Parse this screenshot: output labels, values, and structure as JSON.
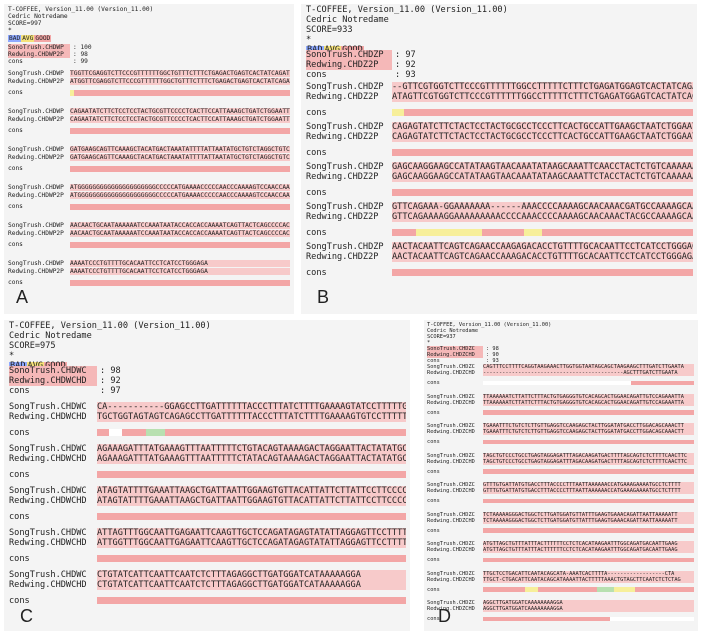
{
  "panels": [
    {
      "id": "A",
      "label": "A",
      "header": [
        "T-COFFEE, Version_11.00 (Version_11.00)",
        "Cedric Notredame",
        "SCORE=997",
        "*"
      ],
      "legend": [
        "BAD",
        "AVG",
        "GOOD"
      ],
      "scores": [
        {
          "name": "SonoTrush.CHDWP",
          "value": ": 100"
        },
        {
          "name": "Redwing.CHDWP2P",
          "value": ": 98"
        },
        {
          "name": "cons",
          "value": ": 99"
        }
      ],
      "seq_names": [
        "SongTrush.CHDWP",
        "Redwing.CHDWP2P",
        "cons"
      ],
      "blocks": [
        [
          "TGGTTCGAGGTCTTCCCGTTTTTTGGCTGTTTCTTTCTGAGACTGAGTCACTATCAGATC",
          "ATGGTTCGAGGTCTTCCCGTTTTTTGGCTGTTTCTTTCTGAGACTGAGTCACTATCAGATC"
        ],
        [
          "CAGAATATCTTCTCCTCCTACTGCGTTCCCCTCACTTCCATTAAAGCTGATCTGGAATTTCA",
          "CAGAATATCTTCTCCTCCTACTGCGTTCCCCTCACTTCCATTAAAGCTGATCTGGAATTTCA"
        ],
        [
          "GATGAAGCAGTTCAAAGCTACATGACTAAATATTTTATTAATATGCTGTCTAGGCTGTCAAAA",
          "GATGAAGCAGTTCAAAGCTACATGACTAAATATTTTATTAATATGCTGTCTAGGCTGTCAAAA"
        ],
        [
          "ATGGGGGGGGGGGGGGGGGGGGGCCCCCATGAAAACCCCCAACCCAAAAGTCCAACCAA",
          "ATGGGGGGGGGGGGGGGGGGGGGCCCCCATGAAAACCCCCAACCCAAAAGTCCAACCAA"
        ],
        [
          "AACAACTGCAATAAAAAATCCAAATAATACCACCACCAAAATCAGTTACTCAGCCCCACCCCA",
          "AACAACTGCAATAAAAAATCCAAATAATACCACCACCAAAATCAGTTACTCAGCCCCACCCCA"
        ],
        [
          "AAAATCCCTGTTTTGCACAATTCCTCATCCTGGGAGA",
          "AAAATCCCTGTTTTGCACAATTCCTCATCCTGGGAGA"
        ]
      ]
    },
    {
      "id": "B",
      "label": "B",
      "header": [
        "T-COFFEE, Version_11.00 (Version_11.00)",
        "Cedric Notredame",
        "SCORE=933",
        "*"
      ],
      "legend": [
        "BAD",
        "AVG",
        "GOOD"
      ],
      "scores": [
        {
          "name": "SonoTrush.CHDZP",
          "value": ": 97"
        },
        {
          "name": "Redwing.CHDZ2P",
          "value": ": 92"
        },
        {
          "name": "cons",
          "value": ": 93"
        }
      ],
      "seq_names": [
        "SongTrush.CHDZP",
        "Redwing.CHDZ2P",
        "cons"
      ],
      "blocks": [
        [
          "--GTTCGTGGTCTTCCCGTTTTTTGGCCTTTTTCTTTCTGAGATGGAGTCACTATCAGATC",
          "ATAGTTCGTGGTCTTCCCGTTTTTTGGCCTTTTTCTTTCTGAGATGGAGTCACTATCAGATC"
        ],
        [
          "CAGAGTATCTTCTACTCCTACTGCGCCTCCCTTCACTGCCATTGAAGCTAATCTGGAATTCCA",
          "CAGAGTATCTTCTACTCCTACTGCGCCTCCCTTCACTGCCATTGAAGCTAATCTGGAATTCCA"
        ],
        [
          "GAGCAAGGAAGCCATATAAGTAACAAATATAAGCAAATTCAACCTACTCTGTCAAAAAAATAT",
          "GAGCAAGGAAGCCATATAAGTAACAAATATAAGCAAATTCTACCTACTCTGTCAAAAAAATAT"
        ],
        [
          "GTTCAGAAA-GGAAAAAAA------AAACCCCAAAAGCAACAAACGATGCCAAAAGCAACACAG",
          "GTTCAGAAAAGGAAAAAAAAACCCCAAACCCCAAAAGCAACAAACTACGCCAAAAGCAACACAG"
        ],
        [
          "AACTACAATTCAGTCAGAACCAAGAGACACCTGTTTTGCACAATTCCTCATCCTGGGAGA",
          "AACTACAATTCAGTCAGAACCAAAGACACCTGTTTTGCACAATTCCTCATCCTGGGAGA"
        ]
      ]
    },
    {
      "id": "C",
      "label": "C",
      "header": [
        "T-COFFEE, Version_11.00 (Version_11.00)",
        "Cedric Notredame",
        "SCORE=975",
        "*"
      ],
      "legend": [
        "BAD",
        "AVG",
        "GOOD"
      ],
      "scores": [
        {
          "name": "SonoTrush.CHDWC",
          "value": ": 98"
        },
        {
          "name": "Redwing.CHDWCHD",
          "value": ": 92"
        },
        {
          "name": "cons",
          "value": ": 97"
        }
      ],
      "seq_names": [
        "SongTrush.CHDWC",
        "Redwing.CHDWCHD",
        "cons"
      ],
      "blocks": [
        [
          "CA-----------GGAGCCTTGATTTTTTACCCTTTATCTTTTGAAAAGTATCCTTTTTGT",
          "TGCTGGTAGTAGTCAGAGCCTTGATTTTTTACCCTTTATCTTTTGAAAAGTGTCCTTTTTGT"
        ],
        [
          "AGAAAGATTTATGAAAGTTTAATTTTTCTGTACAGTAAAAGACTAGGAATTACTATATGCTA",
          "AGAAAGATTTATGAAAGTTTAATTTTTCTATACAGTAAAAGACTAGGAATTACTATATGCCTA"
        ],
        [
          "ATAGTATTTTGAAATTAAGCTGATTAATTGGAAGTGTTACATTATTCTTATTCCTTCCCCCCA",
          "ATAGTATTTTGAAATTAAGCTGATTAATTGGAAGTGTTACATTATTCTTATTCCTTCCCCCCA"
        ],
        [
          "ATTAGTTTGGCAATTGAGAATTCAAGTTGCTCCAGATAGAGTATATTAGGAGTTCCTTTTTAA",
          "ATTGGTTTGGCAATTGAGAATTCAAGTTGCTCCAGATAGAGTATATTAGGAGTTCCTTTTTAA"
        ],
        [
          "CTGTATCATTCAATTCAATCTCTTTAGAGGCTTGATGGATCATAAAAAGGA",
          "CTGTATCATTCAATTCAATCTCTTTAGAGGCTTGATGGATCATAAAAAGGA"
        ]
      ]
    },
    {
      "id": "D",
      "label": "D",
      "header": [
        "T-COFFEE, Version_11.00 (Version_11.00)",
        "Cedric Notredame",
        "SCORE=937",
        "*"
      ],
      "legend": [
        "BAD",
        "AVG",
        "GOOD"
      ],
      "scores": [
        {
          "name": "SonoTrush.CHDZC",
          "value": ": 98"
        },
        {
          "name": "Redwing.CHDZCHD",
          "value": ": 90"
        },
        {
          "name": "cons",
          "value": ": 93"
        }
      ],
      "seq_names": [
        "SongTrush.CHDZC",
        "Redwing.CHDZCHD",
        "cons"
      ],
      "blocks": [
        [
          "CAGTTTCCTTTTCAGGTAAGAAACTTGGTGGTAATAGCAGCTAAGAAGCTTTGATCTTGAATA",
          "--------------------------------------------AGCTTTGATCTTGAATA"
        ],
        [
          "TTAAAAAATCTTATTCTTTACTGTGAGGGTGTCACAGCACTGGAACAGATTGTCCAGAAATTA",
          "TTAAAAAATCTTATTCTTTACTGTGAGGGTGTCACAGCACTGGAACAGATTGTCCAGAAATTA"
        ],
        [
          "TGAAATTTCTGTCTCTTGTTGAGGTCCAAGAGCTACTTGGATATGACCTTGGACAGCAAACTT",
          "TGAAATTTCTGTCTCTTGTTGAGGTCCAAGAGCTACTTGGATATGACCTTGGACAGCAAACTT"
        ],
        [
          "TAGCTGTCCCTGCCTGAGTAGGAGATTTAGACAAGATGACTTTTAGCAGTCTCTTTTCAACTTC",
          "TAGCTGTCCCTGCCTGAGTAGGAGATTTAGACAAGATGACTTTTAGCAGTCTCTTTTCAACTTC"
        ],
        [
          "GTTTGTGATTATGTGACCTTTACCCCTTTAATTAAAAAACCATGAAAGAAAATGCCTCTTTT",
          "GTTTGTGATTATGTGACCTTTACCCCTTTAATTAAAAAACCATGAAAGAAAATGCCTCTTTT"
        ],
        [
          "TCTAAAAAGGGACTGGCTCTTGATGGATGTTATTTGAAGTGAAACAGATTAATTAAAAATT",
          "TCTAAAAAGGGACTGGCTCTTGATGGATGTTATTTGAAGTGAAACAGATTAATTAAAAATT"
        ],
        [
          "ATGTTAGCTGTTTATTTACTTTTTTCCTCTCACATAAGAATTTGGCAGATGACAATTGAAG",
          "ATGTTAGCTGTTTATTTACTTTTTTCCTCTCACATAAGAATTTGGCAGATGACAATTGAAG"
        ],
        [
          "TTGCTCCTGACATTCAATACAGCATA-AAATCACTTTTA------------------CTA",
          "TTGCT-CTGACATTCAATACAGCATAAAATTACTTTTTAAACTGTAGCTTCAATCTCTCTAG"
        ],
        [
          "AGGCTTGATGGATCAAAAAAAAGGA",
          "AGGCTTGATGGATCAAAAAAAAGGA"
        ]
      ]
    }
  ]
}
